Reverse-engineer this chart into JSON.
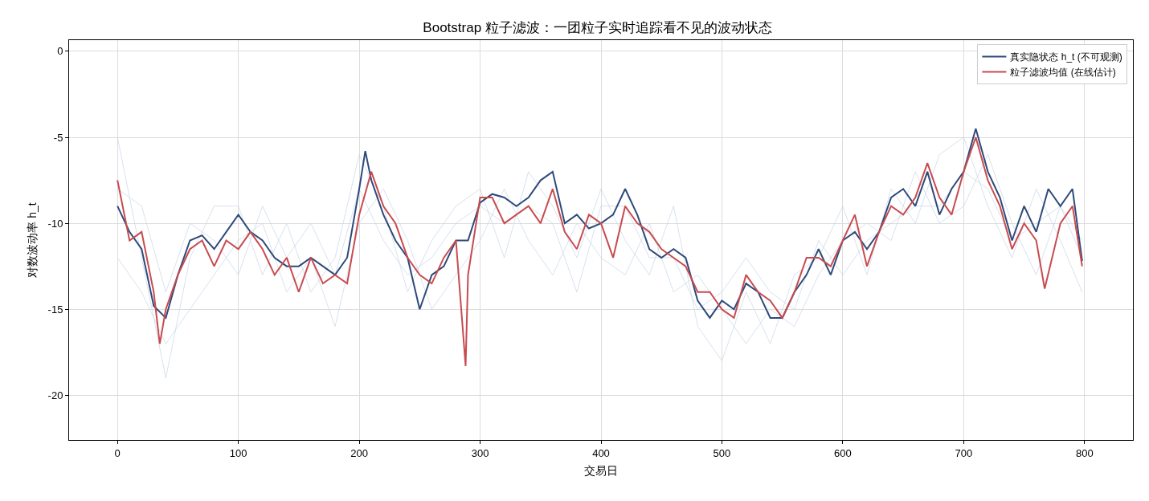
{
  "chart_data": {
    "type": "line",
    "title": "Bootstrap 粒子滤波：一团粒子实时追踪看不见的波动状态",
    "xlabel": "交易日",
    "ylabel": "对数波动率 h_t",
    "xlim": [
      -40,
      840
    ],
    "xticks": [
      0,
      100,
      200,
      300,
      400,
      500,
      600,
      700,
      800
    ],
    "ylim": [
      -22.6,
      0.65
    ],
    "yticks": [
      0,
      -5,
      -10,
      -15,
      -20
    ],
    "grid": true,
    "legend": "top right",
    "marker": "none",
    "line_style": "solid",
    "series": [
      {
        "color": "#c5d5e6",
        "x": [
          0,
          20,
          40,
          60,
          80,
          100,
          120,
          140,
          160,
          180,
          200,
          220,
          240,
          260,
          280,
          300,
          320,
          340,
          360,
          380,
          400,
          420,
          440,
          460,
          480,
          500,
          520,
          540,
          560,
          580,
          600,
          620,
          640,
          660,
          680,
          700,
          720,
          740,
          760,
          780,
          798
        ],
        "values": [
          -5,
          -12,
          -19,
          -12,
          -9,
          -9,
          -13,
          -10,
          -14,
          -12,
          -6,
          -9,
          -14,
          -11,
          -9,
          -8,
          -12,
          -7,
          -9,
          -12,
          -8,
          -11,
          -13,
          -9,
          -16,
          -18,
          -14,
          -17,
          -13,
          -12,
          -9,
          -13,
          -8,
          -10,
          -6,
          -5,
          -9,
          -12,
          -8,
          -11,
          -14
        ]
      },
      {
        "color": "#c5d5e6",
        "x": [
          0,
          20,
          40,
          60,
          80,
          100,
          120,
          140,
          160,
          180,
          200,
          220,
          240,
          260,
          280,
          300,
          320,
          340,
          360,
          380,
          400,
          420,
          440,
          460,
          480,
          500,
          520,
          540,
          560,
          580,
          600,
          620,
          640,
          660,
          680,
          700,
          720,
          740,
          760,
          780,
          798
        ],
        "values": [
          -12,
          -14,
          -17,
          -15,
          -13,
          -11,
          -10,
          -14,
          -12,
          -16,
          -10,
          -8,
          -11,
          -15,
          -13,
          -11,
          -8,
          -11,
          -13,
          -10,
          -12,
          -13,
          -10,
          -14,
          -13,
          -15,
          -17,
          -15,
          -16,
          -13,
          -11,
          -10,
          -11,
          -7,
          -10,
          -9,
          -6,
          -10,
          -13,
          -9,
          -12
        ]
      },
      {
        "color": "#c5d5e6",
        "x": [
          0,
          20,
          40,
          60,
          80,
          100,
          120,
          140,
          160,
          180,
          200,
          220,
          240,
          260,
          280,
          300,
          320,
          340,
          360,
          380,
          400,
          420,
          440,
          460,
          480,
          500,
          520,
          540,
          560,
          580,
          600,
          620,
          640,
          660,
          680,
          700,
          720,
          740,
          760,
          780,
          798
        ],
        "values": [
          -8,
          -9,
          -14,
          -10,
          -11,
          -13,
          -9,
          -12,
          -10,
          -13,
          -8,
          -11,
          -13,
          -12,
          -10,
          -9,
          -10,
          -9,
          -10,
          -14,
          -9,
          -9,
          -12,
          -12,
          -15,
          -14,
          -12,
          -14,
          -15,
          -11,
          -13,
          -11,
          -10,
          -9,
          -9,
          -7,
          -8,
          -11,
          -10,
          -9,
          -11
        ]
      },
      {
        "name": "真实隐状态 h_t (不可观测)",
        "color": "#2e4a7a",
        "x": [
          0,
          10,
          20,
          30,
          40,
          50,
          60,
          70,
          80,
          90,
          100,
          110,
          120,
          130,
          140,
          150,
          160,
          170,
          180,
          190,
          200,
          205,
          210,
          220,
          230,
          240,
          250,
          260,
          270,
          280,
          290,
          300,
          310,
          320,
          330,
          340,
          350,
          360,
          370,
          380,
          390,
          400,
          410,
          420,
          430,
          440,
          450,
          460,
          470,
          480,
          490,
          500,
          510,
          520,
          530,
          540,
          550,
          560,
          570,
          580,
          590,
          600,
          610,
          620,
          630,
          640,
          650,
          660,
          670,
          680,
          690,
          700,
          710,
          720,
          730,
          740,
          750,
          760,
          770,
          780,
          790,
          798
        ],
        "values": [
          -9,
          -10.5,
          -11.5,
          -14.8,
          -15.5,
          -13,
          -11,
          -10.7,
          -11.5,
          -10.5,
          -9.5,
          -10.5,
          -11,
          -12,
          -12.5,
          -12.5,
          -12,
          -12.5,
          -13,
          -12,
          -8,
          -5.8,
          -7.5,
          -9.5,
          -11,
          -12,
          -15,
          -13,
          -12.5,
          -11,
          -11,
          -8.8,
          -8.3,
          -8.5,
          -9,
          -8.5,
          -7.5,
          -7,
          -10,
          -9.5,
          -10.3,
          -10,
          -9.5,
          -8,
          -9.5,
          -11.5,
          -12,
          -11.5,
          -12,
          -14.5,
          -15.5,
          -14.5,
          -15,
          -13.5,
          -14,
          -15.5,
          -15.5,
          -14,
          -13,
          -11.5,
          -13,
          -11,
          -10.5,
          -11.5,
          -10.5,
          -8.5,
          -8,
          -9,
          -7,
          -9.5,
          -8,
          -7,
          -4.5,
          -7,
          -8.5,
          -11,
          -9,
          -10.5,
          -8,
          -9,
          -8,
          -12.2
        ]
      },
      {
        "name": "粒子滤波均值 (在线估计)",
        "color": "#c84b4f",
        "x": [
          0,
          10,
          20,
          30,
          35,
          40,
          50,
          60,
          70,
          80,
          90,
          100,
          110,
          120,
          130,
          140,
          150,
          160,
          170,
          180,
          190,
          200,
          210,
          220,
          230,
          240,
          250,
          260,
          270,
          280,
          288,
          290,
          300,
          310,
          320,
          330,
          340,
          350,
          360,
          370,
          380,
          390,
          400,
          410,
          420,
          430,
          440,
          450,
          460,
          470,
          480,
          490,
          500,
          510,
          520,
          530,
          540,
          550,
          560,
          570,
          580,
          590,
          600,
          610,
          620,
          630,
          640,
          650,
          660,
          670,
          680,
          690,
          700,
          710,
          720,
          730,
          740,
          750,
          760,
          767,
          780,
          790,
          798
        ],
        "values": [
          -7.5,
          -11,
          -10.5,
          -14,
          -17,
          -15,
          -13,
          -11.5,
          -11,
          -12.5,
          -11,
          -11.5,
          -10.5,
          -11.5,
          -13,
          -12,
          -14,
          -12,
          -13.5,
          -13,
          -13.5,
          -9.5,
          -7,
          -9,
          -10,
          -12,
          -13,
          -13.5,
          -12,
          -11,
          -18.3,
          -13,
          -8.5,
          -8.5,
          -10,
          -9.5,
          -9,
          -10,
          -8,
          -10.5,
          -11.5,
          -9.5,
          -10,
          -12,
          -9,
          -10,
          -10.5,
          -11.5,
          -12,
          -12.5,
          -14,
          -14,
          -15,
          -15.5,
          -13,
          -14,
          -14.5,
          -15.5,
          -14,
          -12,
          -12,
          -12.5,
          -11,
          -9.5,
          -12.5,
          -10.5,
          -9,
          -9.5,
          -8.5,
          -6.5,
          -8.5,
          -9.5,
          -7,
          -5,
          -7.5,
          -9,
          -11.5,
          -10,
          -11,
          -13.8,
          -10,
          -9,
          -12.5
        ]
      }
    ]
  }
}
